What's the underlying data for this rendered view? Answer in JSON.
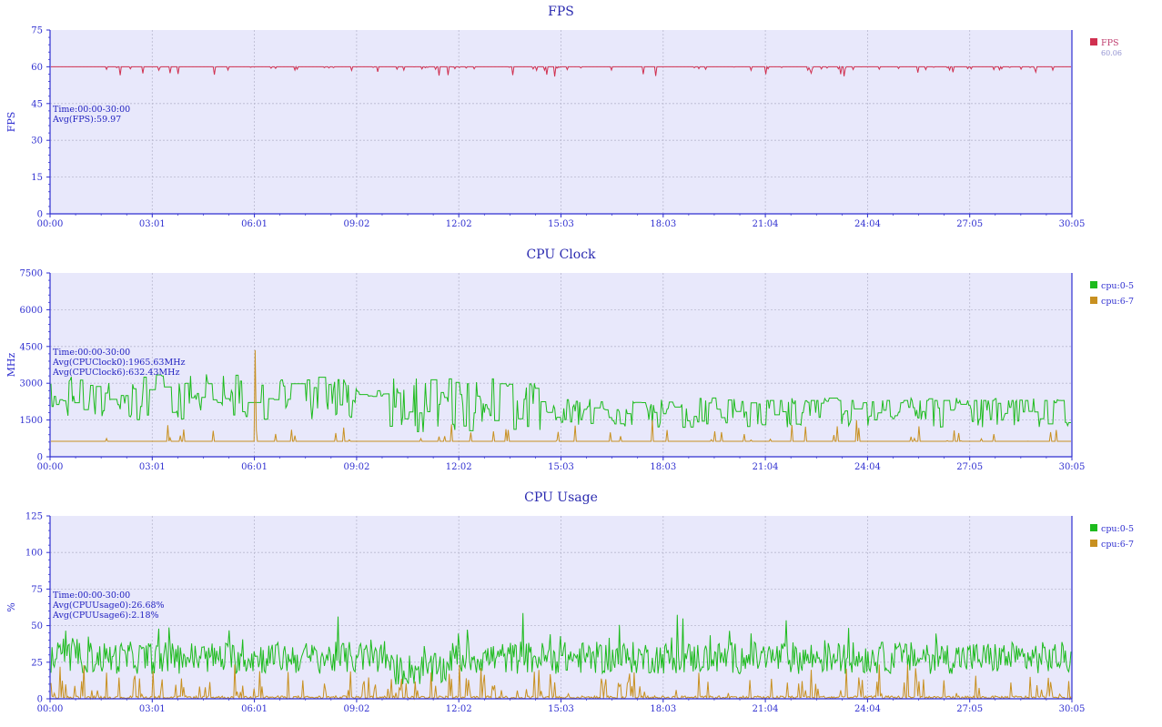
{
  "x_ticks": [
    "00:00",
    "03:01",
    "06:01",
    "09:02",
    "12:02",
    "15:03",
    "18:03",
    "21:04",
    "24:04",
    "27:05",
    "30:05"
  ],
  "colors": {
    "plot_bg": "#e8e8fb",
    "axis": "#2f2fd0",
    "grid": "#b9b9cf",
    "title": "#2a2ab0",
    "fps": "#d03050",
    "cpu_small": "#1dbb1d",
    "cpu_big": "#c89020"
  },
  "chart_data": [
    {
      "type": "line",
      "title": "FPS",
      "ylabel": "FPS",
      "ylim": [
        0,
        75
      ],
      "yticks": [
        "0",
        "15",
        "30",
        "45",
        "60",
        "75"
      ],
      "x_range": [
        "00:00",
        "30:05"
      ],
      "grid": true,
      "legend": "right",
      "annotation": [
        "Time:00:00-30:00",
        "Avg(FPS):59.97"
      ],
      "series": [
        {
          "name": "FPS",
          "sublabel": "60.06",
          "color": "#d03050",
          "baseline": 60,
          "pattern": "fps"
        }
      ]
    },
    {
      "type": "line",
      "title": "CPU Clock",
      "ylabel": "MHz",
      "ylim": [
        0,
        7500
      ],
      "yticks": [
        "0",
        "1500",
        "3000",
        "4500",
        "6000",
        "7500"
      ],
      "x_range": [
        "00:00",
        "30:05"
      ],
      "grid": true,
      "legend": "right",
      "annotation": [
        "Time:00:00-30:00",
        "Avg(CPUClock0):1965.63MHz",
        "Avg(CPUClock6):632.43MHz"
      ],
      "series": [
        {
          "name": "cpu:0-5",
          "color": "#1dbb1d",
          "baseline": 1965.63,
          "pattern": "clock_small"
        },
        {
          "name": "cpu:6-7",
          "color": "#c89020",
          "baseline": 632.43,
          "pattern": "clock_big"
        }
      ]
    },
    {
      "type": "line",
      "title": "CPU Usage",
      "ylabel": "%",
      "ylim": [
        0,
        125
      ],
      "yticks": [
        "0",
        "25",
        "50",
        "75",
        "100",
        "125"
      ],
      "x_range": [
        "00:00",
        "30:05"
      ],
      "grid": true,
      "legend": "right",
      "annotation": [
        "Time:00:00-30:00",
        "Avg(CPUUsage0):26.68%",
        "Avg(CPUUsage6):2.18%"
      ],
      "series": [
        {
          "name": "cpu:0-5",
          "color": "#1dbb1d",
          "baseline": 26.68,
          "pattern": "usage_small"
        },
        {
          "name": "cpu:6-7",
          "color": "#c89020",
          "baseline": 2.18,
          "pattern": "usage_big"
        }
      ]
    }
  ]
}
